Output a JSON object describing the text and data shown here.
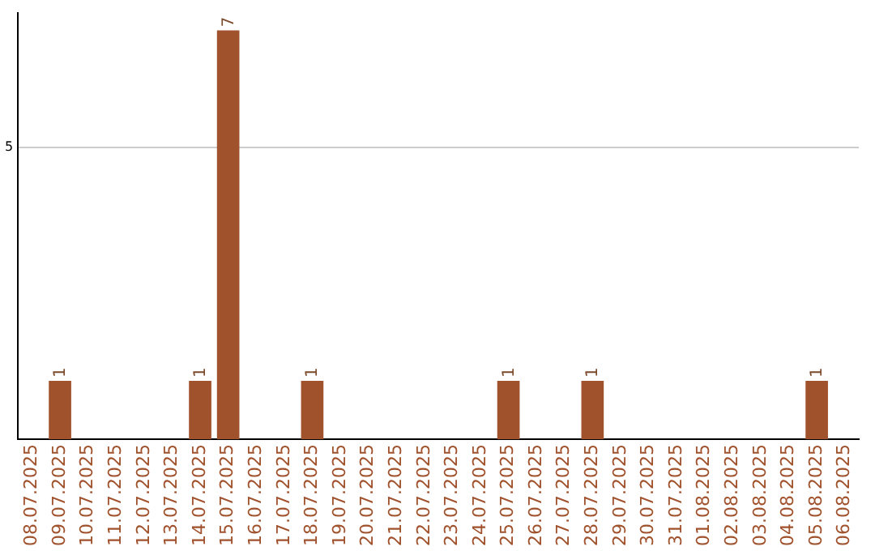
{
  "chart_data": {
    "type": "bar",
    "categories": [
      "08.07.2025",
      "09.07.2025",
      "10.07.2025",
      "11.07.2025",
      "12.07.2025",
      "13.07.2025",
      "14.07.2025",
      "15.07.2025",
      "16.07.2025",
      "17.07.2025",
      "18.07.2025",
      "19.07.2025",
      "20.07.2025",
      "21.07.2025",
      "22.07.2025",
      "23.07.2025",
      "24.07.2025",
      "25.07.2025",
      "26.07.2025",
      "27.07.2025",
      "28.07.2025",
      "29.07.2025",
      "30.07.2025",
      "31.07.2025",
      "01.08.2025",
      "02.08.2025",
      "03.08.2025",
      "04.08.2025",
      "05.08.2025",
      "06.08.2025"
    ],
    "values": [
      0,
      1,
      0,
      0,
      0,
      0,
      1,
      7,
      0,
      0,
      1,
      0,
      0,
      0,
      0,
      0,
      0,
      1,
      0,
      0,
      1,
      0,
      0,
      0,
      0,
      0,
      0,
      0,
      1,
      0
    ],
    "value_labels": [
      null,
      "1",
      null,
      null,
      null,
      null,
      "1",
      "7",
      null,
      null,
      "1",
      null,
      null,
      null,
      null,
      null,
      null,
      "1",
      null,
      null,
      "1",
      null,
      null,
      null,
      null,
      null,
      null,
      null,
      "1",
      null
    ],
    "color": "#a0522d",
    "ylim": [
      0,
      7.3
    ],
    "yticks": [
      5
    ],
    "grid": "y"
  }
}
